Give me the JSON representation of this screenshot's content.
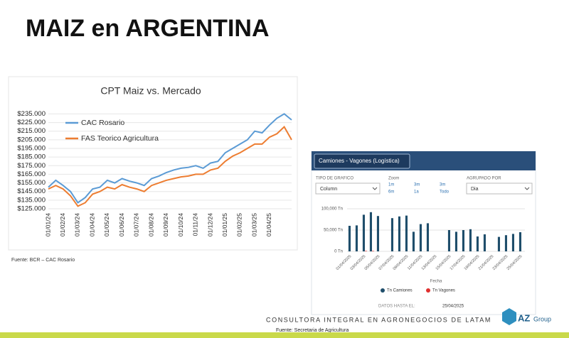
{
  "slide_title": "MAIZ en ARGENTINA",
  "source_left": "Fuente: BCR – CAC Rosario",
  "company": "CONSULTORA INTEGRAL EN AGRONEGOCIOS DE LATAM",
  "source_right": "Fuente: Secretaria de Agricultura",
  "logo": {
    "mark": "AZ",
    "text": "Group"
  },
  "panel": {
    "header": "Camiones - Vagones (Logística)",
    "chart_type_label": "TIPO DE GRAFICO",
    "chart_type_value": "Column",
    "zoom_label": "Zoom",
    "zoom_options": [
      "1m",
      "3m",
      "3m",
      "6m",
      "1a",
      "Todo"
    ],
    "group_label": "AGRUPADO POR",
    "group_value": "Dia",
    "data_until_label": "DATOS HASTA EL:",
    "data_until_value": "25/04/2025"
  },
  "chart_data": [
    {
      "type": "line",
      "title": "CPT Maiz vs. Mercado",
      "categories": [
        "01/01/24",
        null,
        "01/02/24",
        null,
        "01/03/24",
        null,
        "01/04/24",
        null,
        "01/05/24",
        null,
        "01/06/24",
        null,
        "01/07/24",
        null,
        "01/08/24",
        null,
        "01/09/24",
        null,
        "01/10/24",
        null,
        "01/11/24",
        null,
        "01/12/24",
        null,
        "01/01/25",
        null,
        "01/02/25",
        null,
        "01/03/25",
        null,
        "01/04/25",
        null,
        null,
        null
      ],
      "series": [
        {
          "name": "CAC Rosario",
          "color": "#5b9bd5",
          "values": [
            150000,
            158000,
            152000,
            145000,
            132000,
            138000,
            148000,
            150000,
            158000,
            155000,
            160000,
            157000,
            155000,
            152000,
            160000,
            163000,
            167000,
            170000,
            172000,
            173000,
            175000,
            172000,
            178000,
            180000,
            190000,
            195000,
            200000,
            205000,
            215000,
            213000,
            222000,
            230000,
            235000,
            228000
          ]
        },
        {
          "name": "FAS Teorico Agricultura",
          "color": "#ed7d31",
          "values": [
            148000,
            152000,
            148000,
            140000,
            128000,
            132000,
            142000,
            145000,
            150000,
            148000,
            153000,
            150000,
            148000,
            145000,
            152000,
            155000,
            158000,
            160000,
            162000,
            163000,
            165000,
            165000,
            170000,
            172000,
            180000,
            186000,
            190000,
            195000,
            200000,
            200000,
            208000,
            212000,
            220000,
            205000
          ]
        }
      ],
      "ylim": [
        125000,
        237000
      ],
      "yticks": [
        {
          "value": 125000,
          "label": "$125.000"
        },
        {
          "value": 135000,
          "label": "$135.000"
        },
        {
          "value": 145000,
          "label": "$145.000"
        },
        {
          "value": 155000,
          "label": "$155.000"
        },
        {
          "value": 165000,
          "label": "$165.000"
        },
        {
          "value": 175000,
          "label": "$175.000"
        },
        {
          "value": 185000,
          "label": "$185.000"
        },
        {
          "value": 195000,
          "label": "$195.000"
        },
        {
          "value": 205000,
          "label": "$205.000"
        },
        {
          "value": 215000,
          "label": "$215.000"
        },
        {
          "value": 225000,
          "label": "$225.000"
        },
        {
          "value": 235000,
          "label": "$235.000"
        }
      ],
      "grid": true,
      "legend": "top-left"
    },
    {
      "type": "bar",
      "x_label": "Fecha",
      "categories": [
        "01/04/2025",
        null,
        "03/04/2025",
        null,
        "05/04/2025",
        null,
        "07/04/2025",
        null,
        "09/04/2025",
        null,
        "11/04/2025",
        null,
        "13/04/2025",
        null,
        "15/04/2025",
        null,
        "17/04/2025",
        null,
        "19/04/2025",
        null,
        "21/04/2025",
        null,
        "23/04/2025",
        null,
        "25/04/2025"
      ],
      "series": [
        {
          "name": "Tn Camiones",
          "color": "#1f4e6b",
          "values": [
            60000,
            61000,
            86000,
            92000,
            83000,
            null,
            78000,
            82000,
            84000,
            46000,
            64000,
            66000,
            null,
            null,
            50000,
            46000,
            50000,
            52000,
            35000,
            40000,
            null,
            34000,
            38000,
            41000,
            45000
          ]
        },
        {
          "name": "Tn Vagones",
          "color": "#e0302f",
          "values": [
            0,
            0,
            1000,
            1000,
            0,
            null,
            0,
            0,
            0,
            0,
            0,
            0,
            null,
            null,
            0,
            0,
            0,
            0,
            0,
            0,
            null,
            0,
            0,
            0,
            0
          ]
        }
      ],
      "ylim": [
        0,
        100000
      ],
      "yticks": [
        {
          "value": 0,
          "label": "0 Tn"
        },
        {
          "value": 50000,
          "label": "50,000 Tn"
        },
        {
          "value": 100000,
          "label": "100,000 Tn"
        }
      ],
      "grid": true,
      "legend": "bottom"
    }
  ]
}
